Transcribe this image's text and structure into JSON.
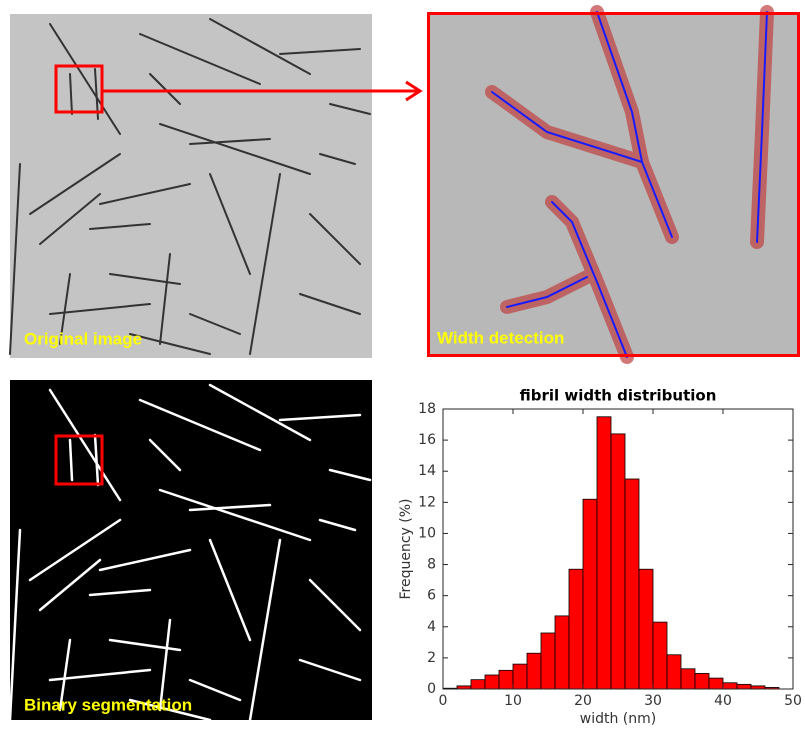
{
  "panels": {
    "original": {
      "label": "Original image"
    },
    "width": {
      "label": "Width detection"
    },
    "binary": {
      "label": "Binary segmentation"
    }
  },
  "chart_data": {
    "type": "histogram",
    "title": "fibril width distribution",
    "x_label": "width (nm)",
    "y_label": "Frequency (%)",
    "bins": [
      0,
      2,
      4,
      6,
      8,
      10,
      12,
      14,
      16,
      18,
      20,
      22,
      24,
      26,
      28,
      30,
      32,
      34,
      36,
      38,
      40,
      42,
      44,
      46,
      48
    ],
    "values": [
      0.05,
      0.2,
      0.6,
      0.9,
      1.2,
      1.6,
      2.3,
      3.6,
      4.7,
      7.7,
      12.2,
      17.5,
      16.4,
      13.5,
      7.7,
      4.3,
      2.2,
      1.3,
      1.0,
      0.7,
      0.4,
      0.3,
      0.2,
      0.1
    ],
    "color": "#ff0000",
    "xlim": [
      0,
      50
    ],
    "ylim": [
      0,
      18
    ],
    "xticks": [
      0,
      10,
      20,
      30,
      40,
      50
    ],
    "yticks": [
      0,
      2,
      4,
      6,
      8,
      10,
      12,
      14,
      16,
      18
    ]
  }
}
